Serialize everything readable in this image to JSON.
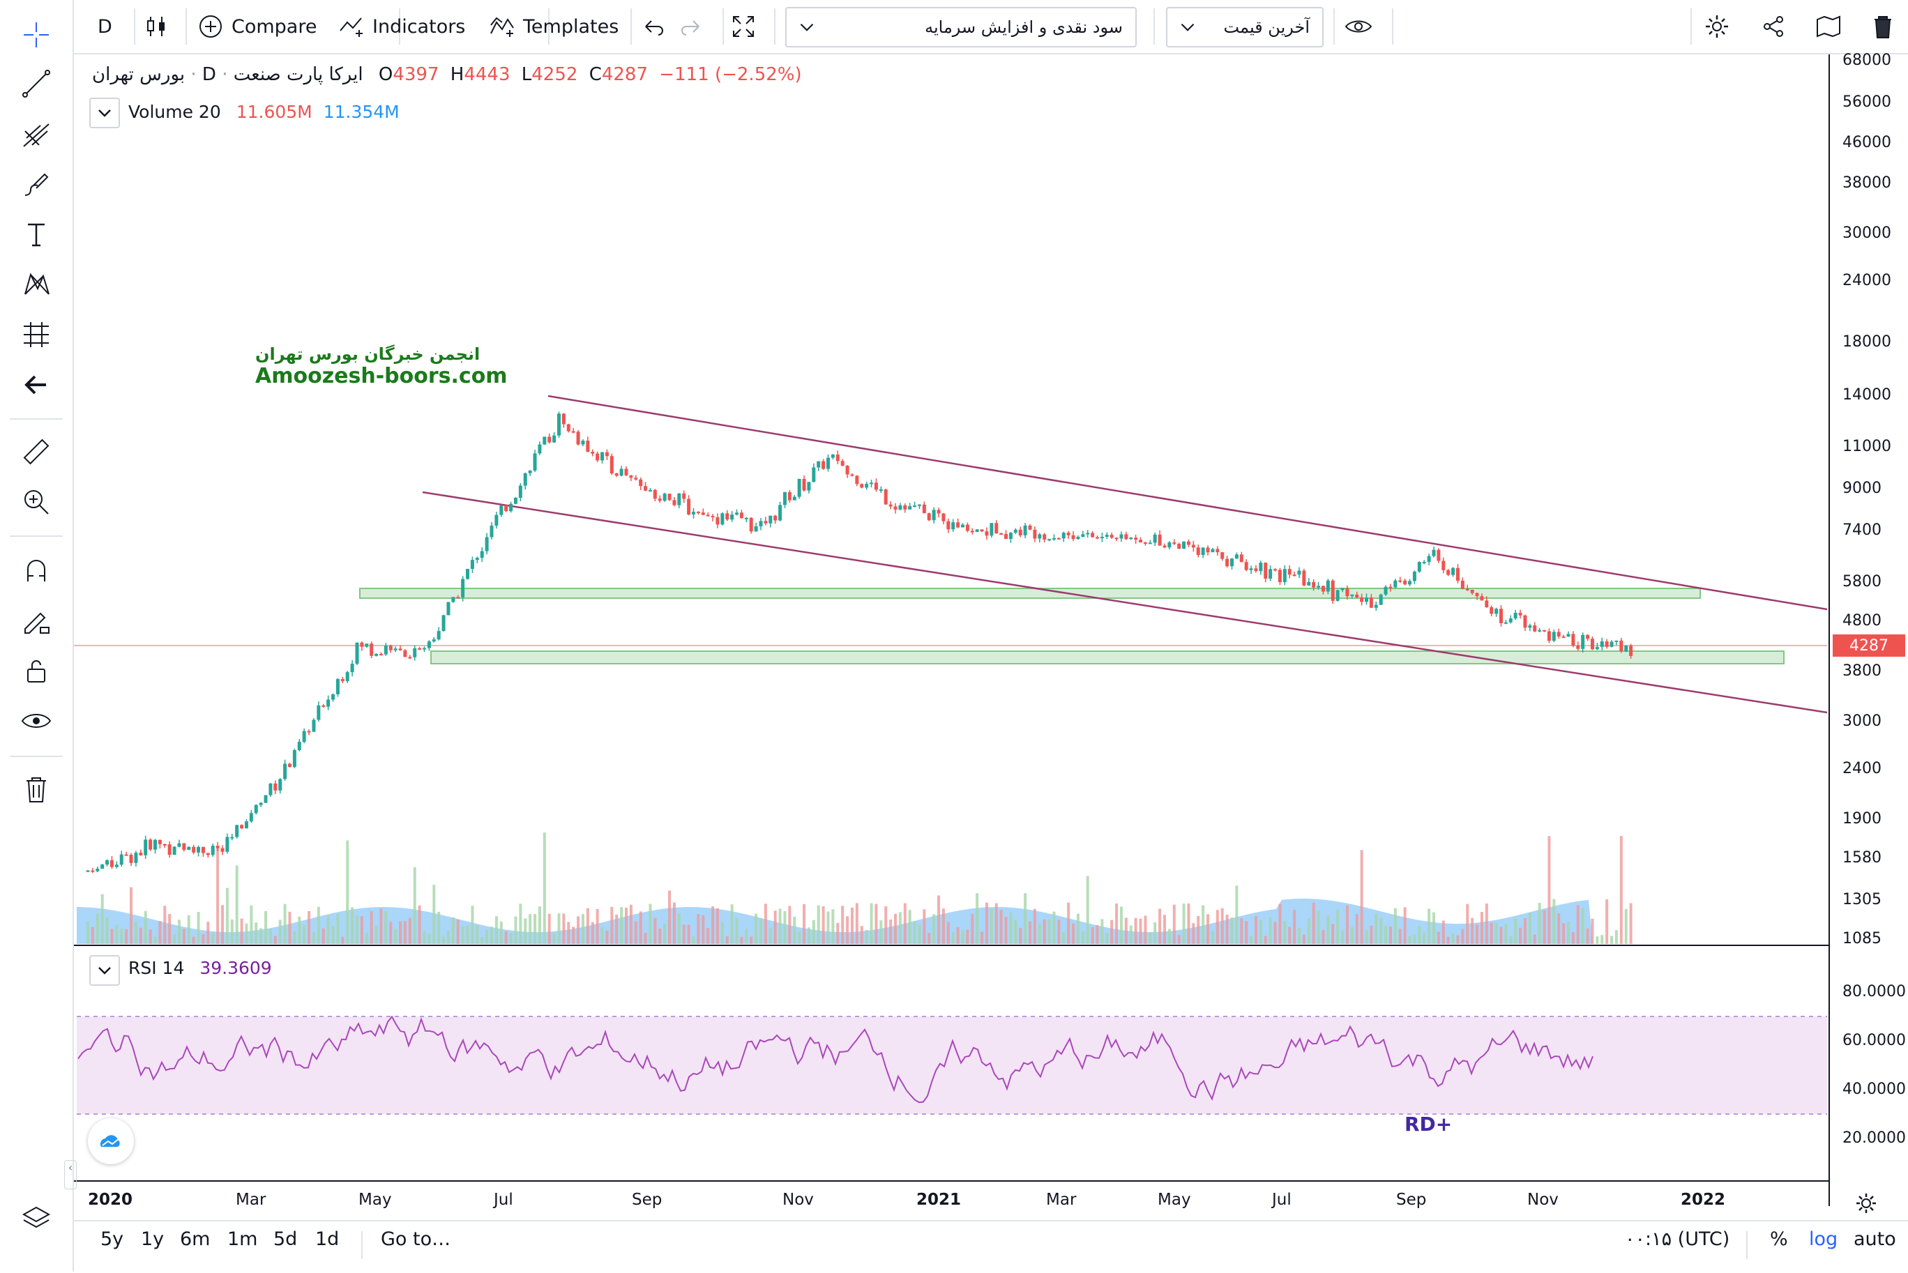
{
  "toolbar": {
    "interval": "D",
    "compare_label": "Compare",
    "indicators_label": "Indicators",
    "templates_label": "Templates",
    "dropdown_event": "سود نقدی و افزایش سرمایه",
    "dropdown_price": "آخرین قیمت"
  },
  "legend": {
    "symbol": "ایرکا پارت صنعت",
    "interval": "D",
    "exchange": "بورس تهران",
    "open_label": "O",
    "open": "4397",
    "high_label": "H",
    "high": "4443",
    "low_label": "L",
    "low": "4252",
    "close_label": "C",
    "close": "4287",
    "change": "−111 (−2.52%)",
    "volume_label": "Volume 20",
    "volume_value": "11.605M",
    "volume_ma": "11.354M",
    "rsi_label": "RSI 14",
    "rsi_value": "39.3609"
  },
  "watermark": {
    "line1": "انجمن خبرگان بورس تهران",
    "line2": "Amoozesh-boors.com"
  },
  "annotation": "RD+",
  "price_axis": {
    "ticks": [
      "68000",
      "56000",
      "46000",
      "38000",
      "30000",
      "24000",
      "18000",
      "14000",
      "11000",
      "9000",
      "7400",
      "5800",
      "4800",
      "3800",
      "3000",
      "2400",
      "1900",
      "1580",
      "1305",
      "1085"
    ],
    "current_price": "4287"
  },
  "rsi_axis": {
    "ticks": [
      "80.0000",
      "60.0000",
      "40.0000",
      "20.0000"
    ]
  },
  "time_axis": {
    "ticks": [
      "2020",
      "Mar",
      "May",
      "Jul",
      "Sep",
      "Nov",
      "2021",
      "Mar",
      "May",
      "Jul",
      "Sep",
      "Nov",
      "2022"
    ]
  },
  "bottom": {
    "ranges": [
      "5y",
      "1y",
      "6m",
      "1m",
      "5d",
      "1d"
    ],
    "goto": "Go to…",
    "timezone": "۰۰:۱۵ (UTC)",
    "percent": "%",
    "log": "log",
    "auto": "auto"
  },
  "colors": {
    "up": "#26a69a",
    "down": "#ef5350",
    "channel": "#9c3b6e",
    "zone_fill": "#c8e6c9",
    "rsi_line": "#9c27b0",
    "rsi_band": "#f3e5f5",
    "log_active": "#2962ff"
  },
  "chart_data": {
    "type": "candlestick",
    "approx_close_series": [
      {
        "date": "2020-01",
        "close": 1500
      },
      {
        "date": "2020-02",
        "close": 1700
      },
      {
        "date": "2020-03",
        "close": 1650
      },
      {
        "date": "2020-04",
        "close": 2500
      },
      {
        "date": "2020-05",
        "close": 4300
      },
      {
        "date": "2020-06",
        "close": 4200
      },
      {
        "date": "2020-07",
        "close": 7500
      },
      {
        "date": "2020-08",
        "close": 12500
      },
      {
        "date": "2020-09",
        "close": 9500
      },
      {
        "date": "2020-10",
        "close": 8200
      },
      {
        "date": "2020-11",
        "close": 7600
      },
      {
        "date": "2020-12",
        "close": 10500
      },
      {
        "date": "2021-01",
        "close": 8500
      },
      {
        "date": "2021-02",
        "close": 7500
      },
      {
        "date": "2021-03",
        "close": 7400
      },
      {
        "date": "2021-05",
        "close": 7100
      },
      {
        "date": "2021-07",
        "close": 5900
      },
      {
        "date": "2021-08",
        "close": 5300
      },
      {
        "date": "2021-09",
        "close": 6600
      },
      {
        "date": "2021-10",
        "close": 5000
      },
      {
        "date": "2021-11",
        "close": 4400
      },
      {
        "date": "2021-12",
        "close": 4287
      }
    ],
    "rsi_band": [
      30,
      70
    ]
  }
}
